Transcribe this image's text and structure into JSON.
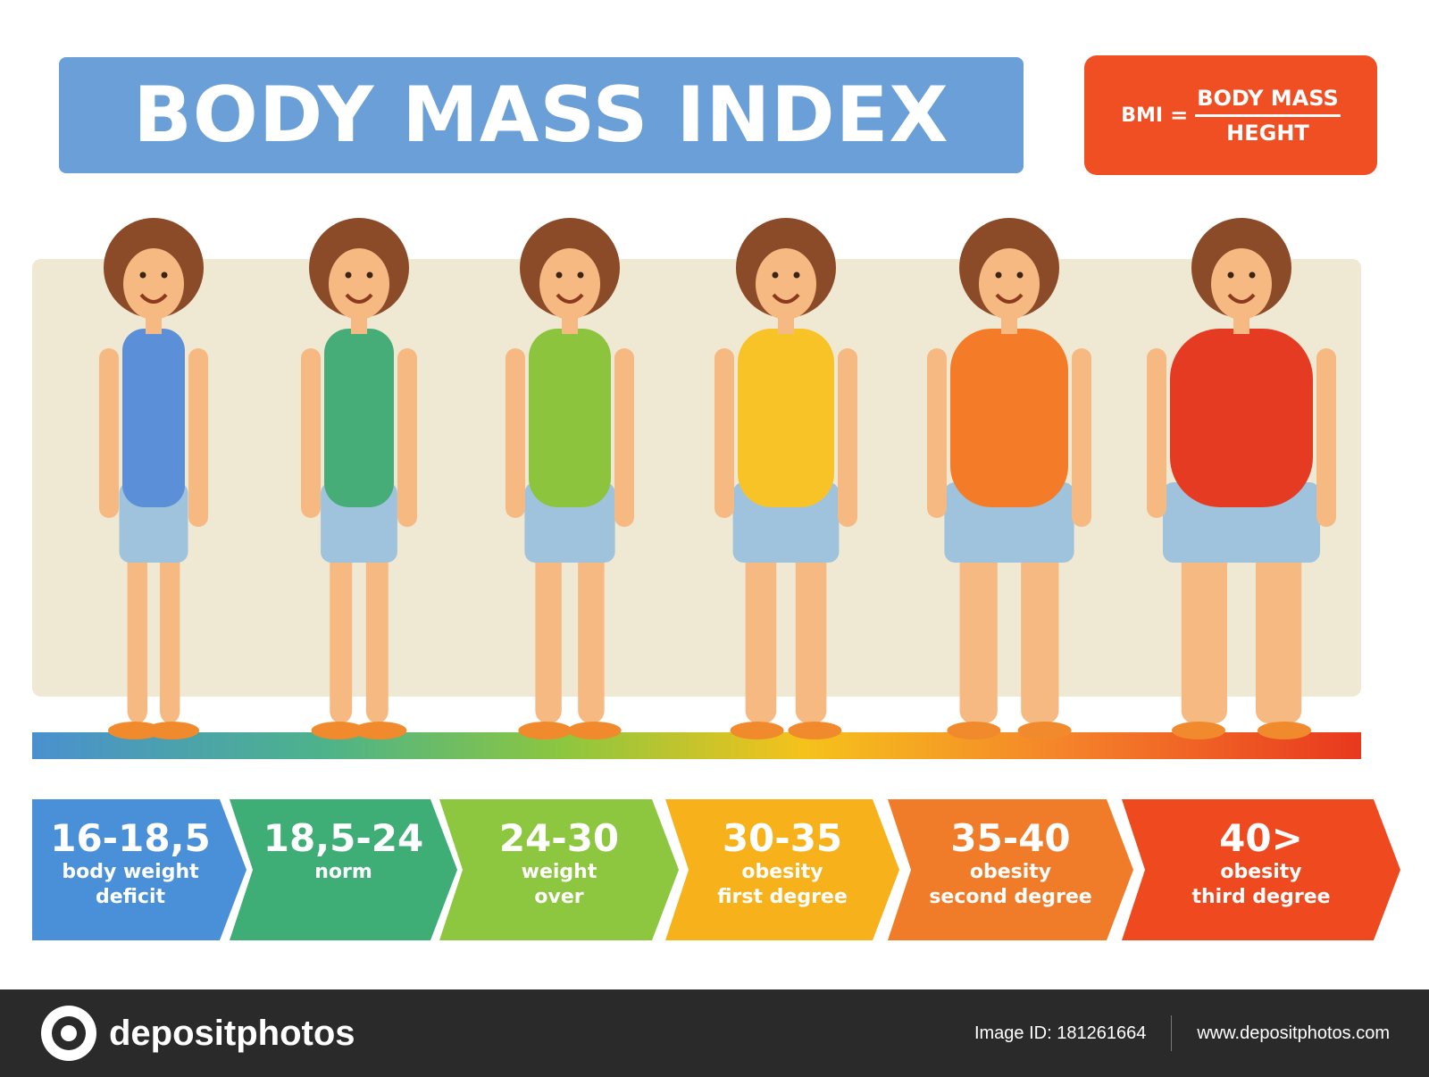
{
  "title": "BODY MASS INDEX",
  "formula": {
    "lhs": "BMI",
    "equals": "=",
    "numerator": "BODY MASS",
    "denominator": "HEGHT"
  },
  "categories": [
    {
      "range": "16-18,5",
      "desc": "body weight\ndeficit",
      "color": "#4a90d9",
      "outfit": "#5b8fd8"
    },
    {
      "range": "18,5-24",
      "desc": "norm",
      "color": "#3fae76",
      "outfit": "#46ad79"
    },
    {
      "range": "24-30",
      "desc": "weight\nover",
      "color": "#8dc63f",
      "outfit": "#8cc43e"
    },
    {
      "range": "30-35",
      "desc": "obesity\nfirst degree",
      "color": "#f7b21b",
      "outfit": "#f8c327"
    },
    {
      "range": "35-40",
      "desc": "obesity\nsecond degree",
      "color": "#f07c2a",
      "outfit": "#f47c29"
    },
    {
      "range": "40>",
      "desc": "obesity\nthird degree",
      "color": "#ef4a1f",
      "outfit": "#e53b23"
    }
  ],
  "footer": {
    "brand": "depositphotos",
    "image_id": "Image ID: 181261664",
    "url": "www.depositphotos.com"
  }
}
